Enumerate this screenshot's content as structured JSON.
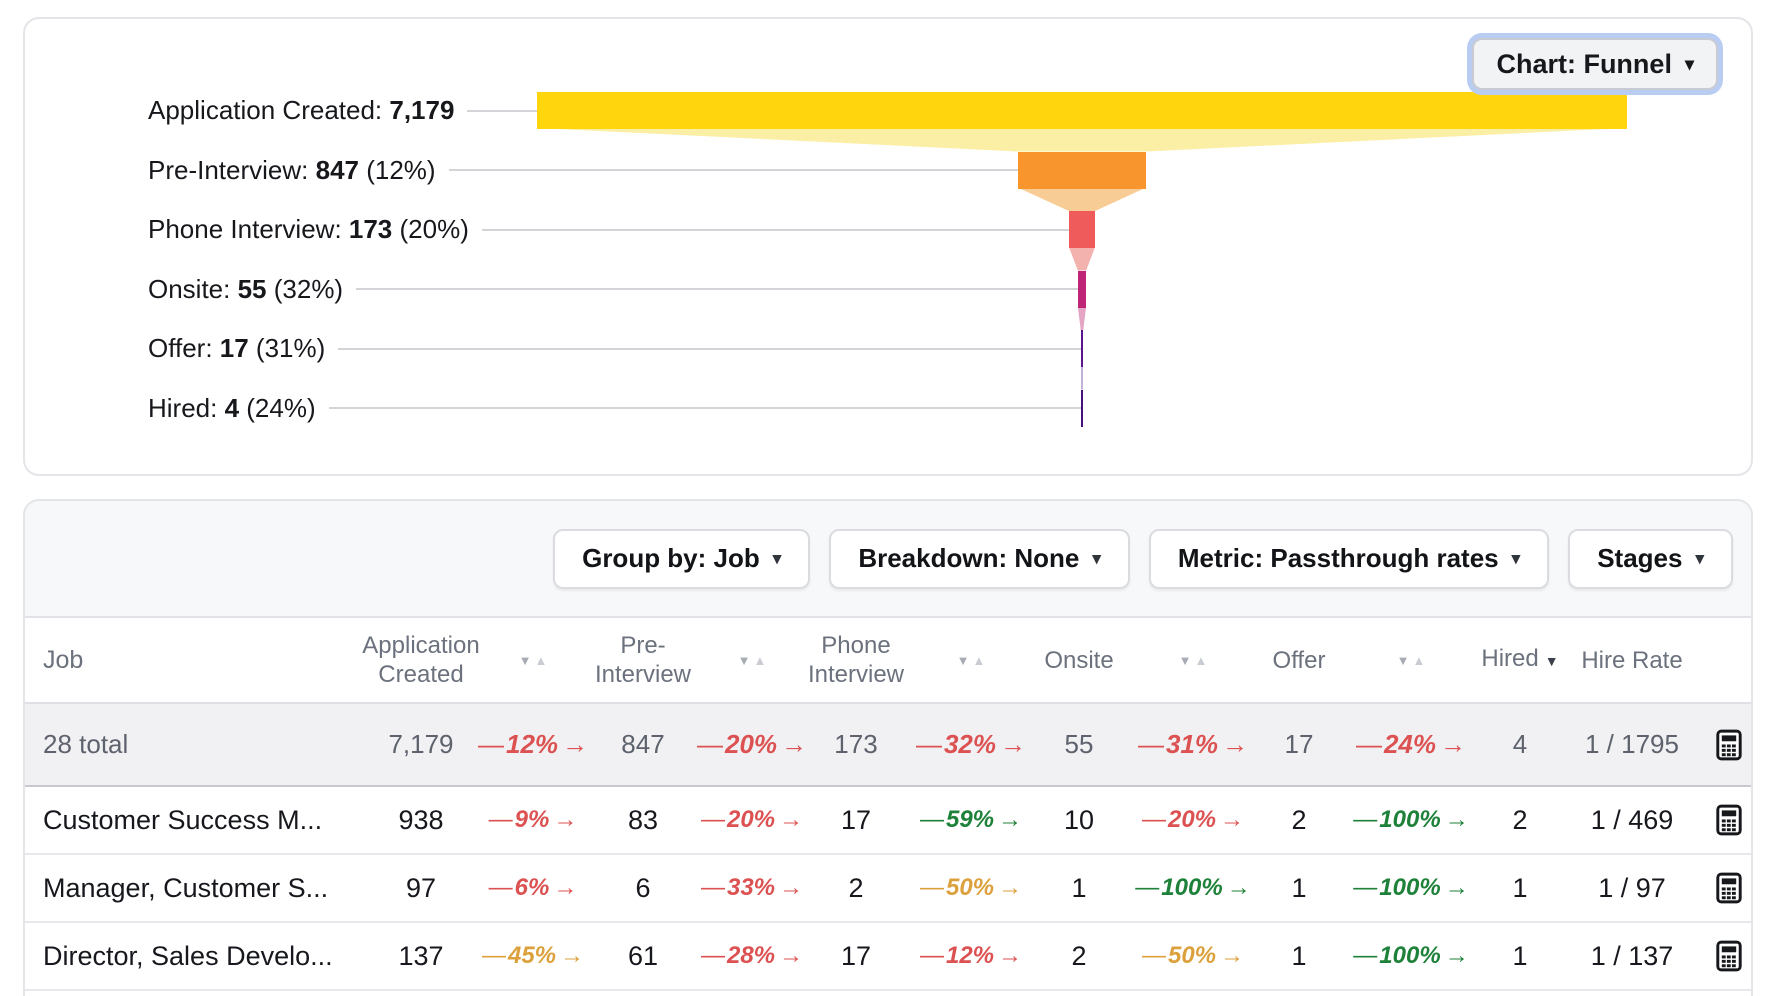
{
  "palette": {
    "red": "#DC5252",
    "green": "#1E8139",
    "amber": "#DCA13C",
    "gray_text": "#6C727D",
    "dark_text": "#16181D",
    "total_row_bg": "#F1F1F4",
    "focus_ring": "#B9CDF3"
  },
  "icons": {
    "caret_down": "▾",
    "sort_desc": "▼",
    "sort_asc": "▲",
    "calculator": "calculator-icon"
  },
  "funnel_card": {
    "chart_button": {
      "label": "Chart: Funnel",
      "caret": "▾"
    }
  },
  "chart_data": {
    "type": "funnel",
    "title": "",
    "legend": "none",
    "stages": [
      {
        "label": "Application Created",
        "value": 7179,
        "display": "7,179",
        "pct": null,
        "color": "#FFD60D",
        "connector": "#FBEFA6"
      },
      {
        "label": "Pre-Interview",
        "value": 847,
        "display": "847",
        "pct": "12%",
        "color": "#F8952D",
        "connector": "#F8CC95"
      },
      {
        "label": "Phone Interview",
        "value": 173,
        "display": "173",
        "pct": "20%",
        "color": "#EF5A5A",
        "connector": "#F4B2AF"
      },
      {
        "label": "Onsite",
        "value": 55,
        "display": "55",
        "pct": "32%",
        "color": "#BE2577",
        "connector": "#E5A6C6"
      },
      {
        "label": "Offer",
        "value": 17,
        "display": "17",
        "pct": "31%",
        "color": "#58168C",
        "connector": "#C2B1D5"
      },
      {
        "label": "Hired",
        "value": 4,
        "display": "4",
        "pct": "24%",
        "color": "#46117A",
        "connector": "#C9C3D8"
      }
    ]
  },
  "table_card": {
    "controls": [
      {
        "name": "group-by",
        "label": "Group by: Job",
        "caret": "▾"
      },
      {
        "name": "breakdown",
        "label": "Breakdown: None",
        "caret": "▾"
      },
      {
        "name": "metric",
        "label": "Metric: Passthrough rates",
        "caret": "▾"
      },
      {
        "name": "stages",
        "label": "Stages",
        "caret": "▾"
      }
    ],
    "columns": [
      "Job",
      "Application Created",
      "Pre-Interview",
      "Phone Interview",
      "Onsite",
      "Offer",
      "Hired",
      "Hire Rate"
    ],
    "sorted_column": "Hired",
    "sort_direction": "desc",
    "rows": [
      {
        "job": "28 total",
        "is_total": true,
        "values": [
          "7,179",
          "847",
          "173",
          "55",
          "17",
          "4"
        ],
        "pcts": [
          {
            "v": "12%",
            "c": "red"
          },
          {
            "v": "20%",
            "c": "red"
          },
          {
            "v": "32%",
            "c": "red"
          },
          {
            "v": "31%",
            "c": "red"
          },
          {
            "v": "24%",
            "c": "red"
          }
        ],
        "hire_rate": "1 / 1795"
      },
      {
        "job": "Customer Success M...",
        "is_total": false,
        "values": [
          "938",
          "83",
          "17",
          "10",
          "2",
          "2"
        ],
        "pcts": [
          {
            "v": "9%",
            "c": "red"
          },
          {
            "v": "20%",
            "c": "red"
          },
          {
            "v": "59%",
            "c": "green"
          },
          {
            "v": "20%",
            "c": "red"
          },
          {
            "v": "100%",
            "c": "green"
          }
        ],
        "hire_rate": "1 / 469"
      },
      {
        "job": "Manager, Customer S...",
        "is_total": false,
        "values": [
          "97",
          "6",
          "2",
          "1",
          "1",
          "1"
        ],
        "pcts": [
          {
            "v": "6%",
            "c": "red"
          },
          {
            "v": "33%",
            "c": "red"
          },
          {
            "v": "50%",
            "c": "amber"
          },
          {
            "v": "100%",
            "c": "green"
          },
          {
            "v": "100%",
            "c": "green"
          }
        ],
        "hire_rate": "1 / 97"
      },
      {
        "job": "Director, Sales Develo...",
        "is_total": false,
        "values": [
          "137",
          "61",
          "17",
          "2",
          "1",
          "1"
        ],
        "pcts": [
          {
            "v": "45%",
            "c": "amber"
          },
          {
            "v": "28%",
            "c": "red"
          },
          {
            "v": "12%",
            "c": "red"
          },
          {
            "v": "50%",
            "c": "amber"
          },
          {
            "v": "100%",
            "c": "green"
          }
        ],
        "hire_rate": "1 / 137"
      }
    ]
  }
}
